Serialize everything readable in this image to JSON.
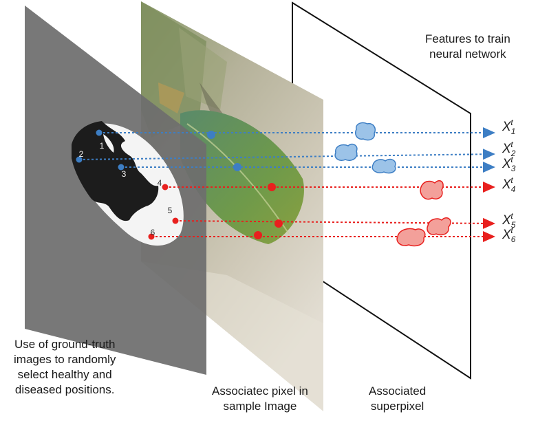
{
  "captions": {
    "features": [
      "Features to train",
      "neural network"
    ],
    "ground_truth": [
      "Use of ground-truth",
      "images to randomly",
      "select healthy and",
      "diseased positions."
    ],
    "pixel": [
      "Associatec pixel in",
      "sample Image"
    ],
    "superpixel": [
      "Associated",
      "superpixel"
    ]
  },
  "positions": [
    {
      "label": "1",
      "class": "healthy"
    },
    {
      "label": "2",
      "class": "healthy"
    },
    {
      "label": "3",
      "class": "healthy"
    },
    {
      "label": "4",
      "class": "diseased"
    },
    {
      "label": "5",
      "class": "diseased"
    },
    {
      "label": "6",
      "class": "diseased"
    }
  ],
  "features": [
    {
      "base": "X",
      "sub": "1",
      "sup": "t"
    },
    {
      "base": "X",
      "sub": "2",
      "sup": "t"
    },
    {
      "base": "X",
      "sub": "3",
      "sup": "t"
    },
    {
      "base": "X",
      "sub": "4",
      "sup": "t"
    },
    {
      "base": "X",
      "sub": "5",
      "sup": "t"
    },
    {
      "base": "X",
      "sub": "6",
      "sup": "t"
    }
  ],
  "colors": {
    "healthy": "#3d7ec4",
    "healthy_fill": "#9cc3e8",
    "diseased": "#e8201e",
    "diseased_fill": "#f3a09a",
    "ground_truth_panel": "#6e6e6e",
    "leaf_healthy": "#f4f4f4",
    "leaf_diseased": "#1c1c1c"
  }
}
